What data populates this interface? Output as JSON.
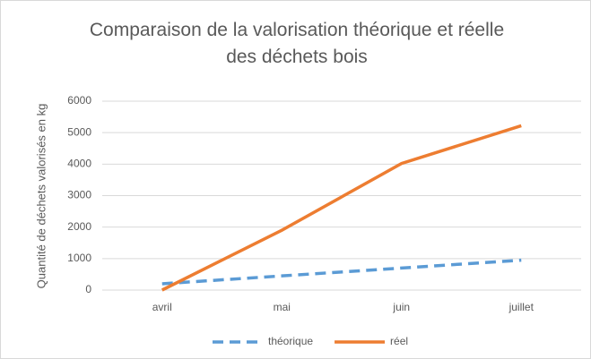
{
  "chart_data": {
    "type": "line",
    "title": "Comparaison de la valorisation théorique et réelle des déchets bois",
    "y_label": "Quantité de déchets valorisés en kg",
    "categories": [
      "avril",
      "mai",
      "juin",
      "juillet"
    ],
    "series": [
      {
        "name": "théorique",
        "color": "#5b9bd5",
        "dashed": true,
        "values": [
          200,
          450,
          700,
          950
        ]
      },
      {
        "name": "réel",
        "color": "#ed7d31",
        "dashed": false,
        "values": [
          0,
          1900,
          4020,
          5220
        ]
      }
    ],
    "ylim": [
      0,
      6000
    ],
    "yticks": [
      0,
      1000,
      2000,
      3000,
      4000,
      5000,
      6000
    ],
    "grid": true,
    "legend": "bottom"
  }
}
